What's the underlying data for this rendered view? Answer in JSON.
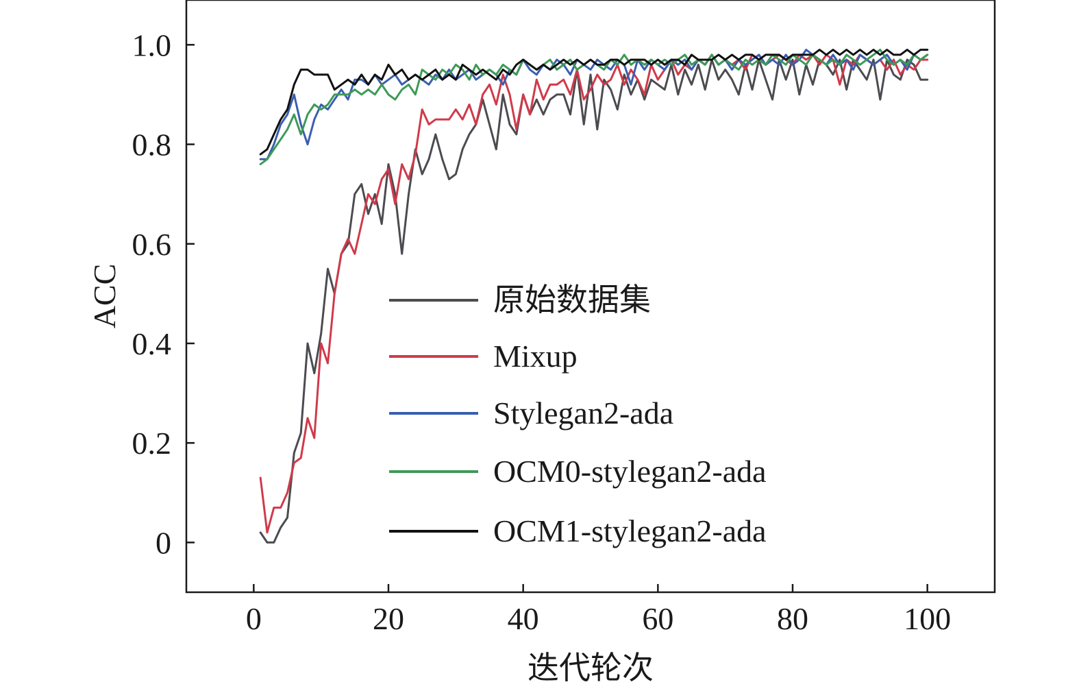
{
  "chart_data": {
    "type": "line",
    "title": "",
    "xlabel": "迭代轮次",
    "ylabel": "ACC",
    "xlim": [
      -10,
      110
    ],
    "ylim": [
      -0.1,
      1.09
    ],
    "xticks": [
      0,
      20,
      40,
      60,
      80,
      100
    ],
    "xtick_labels": [
      "0",
      "20",
      "40",
      "60",
      "80",
      "100"
    ],
    "yticks": [
      0,
      0.2,
      0.4,
      0.6,
      0.8,
      1.0
    ],
    "ytick_labels": [
      "0",
      "0.2",
      "0.4",
      "0.6",
      "0.8",
      "1.0"
    ],
    "legend_position": "center",
    "series": [
      {
        "name": "原始数据集",
        "color": "#4b4b50",
        "x": [
          1,
          2,
          3,
          4,
          5,
          6,
          7,
          8,
          9,
          10,
          11,
          12,
          13,
          14,
          15,
          16,
          17,
          18,
          19,
          20,
          21,
          22,
          23,
          24,
          25,
          26,
          27,
          28,
          29,
          30,
          31,
          32,
          33,
          34,
          35,
          36,
          37,
          38,
          39,
          40,
          41,
          42,
          43,
          44,
          45,
          46,
          47,
          48,
          49,
          50,
          51,
          52,
          53,
          54,
          55,
          56,
          57,
          58,
          59,
          60,
          61,
          62,
          63,
          64,
          65,
          66,
          67,
          68,
          69,
          70,
          71,
          72,
          73,
          74,
          75,
          76,
          77,
          78,
          79,
          80,
          81,
          82,
          83,
          84,
          85,
          86,
          87,
          88,
          89,
          90,
          91,
          92,
          93,
          94,
          95,
          96,
          97,
          98,
          99,
          100
        ],
        "values": [
          0.02,
          0.0,
          0.0,
          0.03,
          0.05,
          0.18,
          0.22,
          0.4,
          0.34,
          0.42,
          0.55,
          0.5,
          0.58,
          0.6,
          0.7,
          0.72,
          0.66,
          0.7,
          0.64,
          0.76,
          0.7,
          0.58,
          0.7,
          0.79,
          0.74,
          0.77,
          0.82,
          0.77,
          0.73,
          0.74,
          0.79,
          0.82,
          0.84,
          0.89,
          0.84,
          0.79,
          0.9,
          0.84,
          0.82,
          0.9,
          0.86,
          0.89,
          0.86,
          0.89,
          0.9,
          0.9,
          0.86,
          0.95,
          0.84,
          0.94,
          0.83,
          0.93,
          0.91,
          0.87,
          0.94,
          0.9,
          0.93,
          0.89,
          0.93,
          0.92,
          0.91,
          0.96,
          0.9,
          0.95,
          0.92,
          0.96,
          0.91,
          0.97,
          0.93,
          0.95,
          0.93,
          0.9,
          0.96,
          0.91,
          0.97,
          0.93,
          0.89,
          0.97,
          0.93,
          0.97,
          0.9,
          0.96,
          0.92,
          0.97,
          0.96,
          0.94,
          0.97,
          0.91,
          0.97,
          0.95,
          0.93,
          0.97,
          0.89,
          0.97,
          0.94,
          0.93,
          0.97,
          0.96,
          0.93,
          0.93
        ]
      },
      {
        "name": "Mixup",
        "color": "#d03a4a",
        "x": [
          1,
          2,
          3,
          4,
          5,
          6,
          7,
          8,
          9,
          10,
          11,
          12,
          13,
          14,
          15,
          16,
          17,
          18,
          19,
          20,
          21,
          22,
          23,
          24,
          25,
          26,
          27,
          28,
          29,
          30,
          31,
          32,
          33,
          34,
          35,
          36,
          37,
          38,
          39,
          40,
          41,
          42,
          43,
          44,
          45,
          46,
          47,
          48,
          49,
          50,
          51,
          52,
          53,
          54,
          55,
          56,
          57,
          58,
          59,
          60,
          61,
          62,
          63,
          64,
          65,
          66,
          67,
          68,
          69,
          70,
          71,
          72,
          73,
          74,
          75,
          76,
          77,
          78,
          79,
          80,
          81,
          82,
          83,
          84,
          85,
          86,
          87,
          88,
          89,
          90,
          91,
          92,
          93,
          94,
          95,
          96,
          97,
          98,
          99,
          100
        ],
        "values": [
          0.13,
          0.02,
          0.07,
          0.07,
          0.1,
          0.16,
          0.17,
          0.25,
          0.21,
          0.4,
          0.36,
          0.5,
          0.58,
          0.61,
          0.58,
          0.64,
          0.7,
          0.68,
          0.73,
          0.75,
          0.68,
          0.76,
          0.73,
          0.78,
          0.87,
          0.84,
          0.85,
          0.85,
          0.85,
          0.87,
          0.85,
          0.88,
          0.84,
          0.9,
          0.92,
          0.88,
          0.94,
          0.9,
          0.83,
          0.9,
          0.86,
          0.93,
          0.89,
          0.92,
          0.92,
          0.93,
          0.9,
          0.95,
          0.89,
          0.91,
          0.94,
          0.92,
          0.93,
          0.96,
          0.92,
          0.95,
          0.93,
          0.9,
          0.96,
          0.93,
          0.95,
          0.97,
          0.94,
          0.96,
          0.95,
          0.97,
          0.96,
          0.98,
          0.96,
          0.97,
          0.96,
          0.97,
          0.95,
          0.98,
          0.97,
          0.96,
          0.97,
          0.98,
          0.97,
          0.96,
          0.98,
          0.97,
          0.98,
          0.96,
          0.98,
          0.97,
          0.92,
          0.97,
          0.96,
          0.98,
          0.97,
          0.96,
          0.97,
          0.95,
          0.97,
          0.94,
          0.96,
          0.95,
          0.97,
          0.97
        ]
      },
      {
        "name": "Stylegan2-ada",
        "color": "#3a5fb0",
        "x": [
          1,
          2,
          3,
          4,
          5,
          6,
          7,
          8,
          9,
          10,
          11,
          12,
          13,
          14,
          15,
          16,
          17,
          18,
          19,
          20,
          21,
          22,
          23,
          24,
          25,
          26,
          27,
          28,
          29,
          30,
          31,
          32,
          33,
          34,
          35,
          36,
          37,
          38,
          39,
          40,
          41,
          42,
          43,
          44,
          45,
          46,
          47,
          48,
          49,
          50,
          51,
          52,
          53,
          54,
          55,
          56,
          57,
          58,
          59,
          60,
          61,
          62,
          63,
          64,
          65,
          66,
          67,
          68,
          69,
          70,
          71,
          72,
          73,
          74,
          75,
          76,
          77,
          78,
          79,
          80,
          81,
          82,
          83,
          84,
          85,
          86,
          87,
          88,
          89,
          90,
          91,
          92,
          93,
          94,
          95,
          96,
          97,
          98,
          99,
          100
        ],
        "values": [
          0.77,
          0.77,
          0.8,
          0.84,
          0.86,
          0.9,
          0.84,
          0.8,
          0.85,
          0.88,
          0.87,
          0.89,
          0.91,
          0.89,
          0.93,
          0.93,
          0.92,
          0.94,
          0.92,
          0.93,
          0.94,
          0.92,
          0.93,
          0.94,
          0.93,
          0.92,
          0.94,
          0.93,
          0.95,
          0.93,
          0.94,
          0.95,
          0.93,
          0.94,
          0.95,
          0.94,
          0.92,
          0.95,
          0.94,
          0.97,
          0.95,
          0.94,
          0.96,
          0.95,
          0.97,
          0.96,
          0.94,
          0.97,
          0.96,
          0.95,
          0.97,
          0.96,
          0.95,
          0.97,
          0.96,
          0.92,
          0.97,
          0.95,
          0.97,
          0.96,
          0.95,
          0.97,
          0.96,
          0.97,
          0.95,
          0.97,
          0.96,
          0.98,
          0.96,
          0.97,
          0.95,
          0.97,
          0.96,
          0.97,
          0.98,
          0.96,
          0.97,
          0.96,
          0.98,
          0.96,
          0.97,
          0.99,
          0.98,
          0.97,
          0.96,
          0.98,
          0.96,
          0.97,
          0.95,
          0.98,
          0.97,
          0.96,
          0.97,
          0.98,
          0.96,
          0.97,
          0.95,
          0.98,
          0.97,
          0.98
        ]
      },
      {
        "name": "OCM0-stylegan2-ada",
        "color": "#3e9a57",
        "x": [
          1,
          2,
          3,
          4,
          5,
          6,
          7,
          8,
          9,
          10,
          11,
          12,
          13,
          14,
          15,
          16,
          17,
          18,
          19,
          20,
          21,
          22,
          23,
          24,
          25,
          26,
          27,
          28,
          29,
          30,
          31,
          32,
          33,
          34,
          35,
          36,
          37,
          38,
          39,
          40,
          41,
          42,
          43,
          44,
          45,
          46,
          47,
          48,
          49,
          50,
          51,
          52,
          53,
          54,
          55,
          56,
          57,
          58,
          59,
          60,
          61,
          62,
          63,
          64,
          65,
          66,
          67,
          68,
          69,
          70,
          71,
          72,
          73,
          74,
          75,
          76,
          77,
          78,
          79,
          80,
          81,
          82,
          83,
          84,
          85,
          86,
          87,
          88,
          89,
          90,
          91,
          92,
          93,
          94,
          95,
          96,
          97,
          98,
          99,
          100
        ],
        "values": [
          0.76,
          0.77,
          0.79,
          0.81,
          0.83,
          0.86,
          0.82,
          0.86,
          0.88,
          0.87,
          0.88,
          0.9,
          0.9,
          0.9,
          0.91,
          0.9,
          0.91,
          0.9,
          0.92,
          0.9,
          0.89,
          0.91,
          0.92,
          0.9,
          0.95,
          0.94,
          0.93,
          0.95,
          0.94,
          0.96,
          0.95,
          0.93,
          0.96,
          0.94,
          0.95,
          0.94,
          0.96,
          0.95,
          0.94,
          0.97,
          0.96,
          0.95,
          0.96,
          0.97,
          0.95,
          0.96,
          0.97,
          0.95,
          0.96,
          0.97,
          0.96,
          0.95,
          0.97,
          0.96,
          0.98,
          0.96,
          0.97,
          0.96,
          0.97,
          0.96,
          0.97,
          0.96,
          0.97,
          0.98,
          0.96,
          0.97,
          0.96,
          0.98,
          0.96,
          0.97,
          0.96,
          0.95,
          0.97,
          0.96,
          0.97,
          0.96,
          0.98,
          0.97,
          0.96,
          0.98,
          0.97,
          0.96,
          0.98,
          0.97,
          0.96,
          0.97,
          0.96,
          0.98,
          0.97,
          0.96,
          0.97,
          0.98,
          0.99,
          0.97,
          0.96,
          0.97,
          0.96,
          0.98,
          0.97,
          0.98
        ]
      },
      {
        "name": "OCM1-stylegan2-ada",
        "color": "#111111",
        "x": [
          1,
          2,
          3,
          4,
          5,
          6,
          7,
          8,
          9,
          10,
          11,
          12,
          13,
          14,
          15,
          16,
          17,
          18,
          19,
          20,
          21,
          22,
          23,
          24,
          25,
          26,
          27,
          28,
          29,
          30,
          31,
          32,
          33,
          34,
          35,
          36,
          37,
          38,
          39,
          40,
          41,
          42,
          43,
          44,
          45,
          46,
          47,
          48,
          49,
          50,
          51,
          52,
          53,
          54,
          55,
          56,
          57,
          58,
          59,
          60,
          61,
          62,
          63,
          64,
          65,
          66,
          67,
          68,
          69,
          70,
          71,
          72,
          73,
          74,
          75,
          76,
          77,
          78,
          79,
          80,
          81,
          82,
          83,
          84,
          85,
          86,
          87,
          88,
          89,
          90,
          91,
          92,
          93,
          94,
          95,
          96,
          97,
          98,
          99,
          100
        ],
        "values": [
          0.78,
          0.79,
          0.82,
          0.85,
          0.87,
          0.92,
          0.95,
          0.95,
          0.94,
          0.94,
          0.94,
          0.91,
          0.92,
          0.93,
          0.92,
          0.94,
          0.92,
          0.94,
          0.93,
          0.96,
          0.94,
          0.95,
          0.93,
          0.94,
          0.93,
          0.94,
          0.95,
          0.93,
          0.94,
          0.93,
          0.96,
          0.95,
          0.94,
          0.95,
          0.94,
          0.93,
          0.95,
          0.94,
          0.96,
          0.97,
          0.96,
          0.95,
          0.96,
          0.95,
          0.96,
          0.97,
          0.96,
          0.97,
          0.96,
          0.97,
          0.96,
          0.96,
          0.97,
          0.97,
          0.96,
          0.97,
          0.97,
          0.97,
          0.96,
          0.97,
          0.96,
          0.97,
          0.97,
          0.96,
          0.98,
          0.97,
          0.97,
          0.97,
          0.98,
          0.97,
          0.98,
          0.97,
          0.98,
          0.98,
          0.97,
          0.98,
          0.98,
          0.98,
          0.97,
          0.98,
          0.98,
          0.98,
          0.98,
          0.99,
          0.98,
          0.99,
          0.98,
          0.99,
          0.98,
          0.99,
          0.98,
          0.99,
          0.98,
          0.99,
          0.98,
          0.98,
          0.99,
          0.98,
          0.99,
          0.99
        ]
      }
    ]
  }
}
